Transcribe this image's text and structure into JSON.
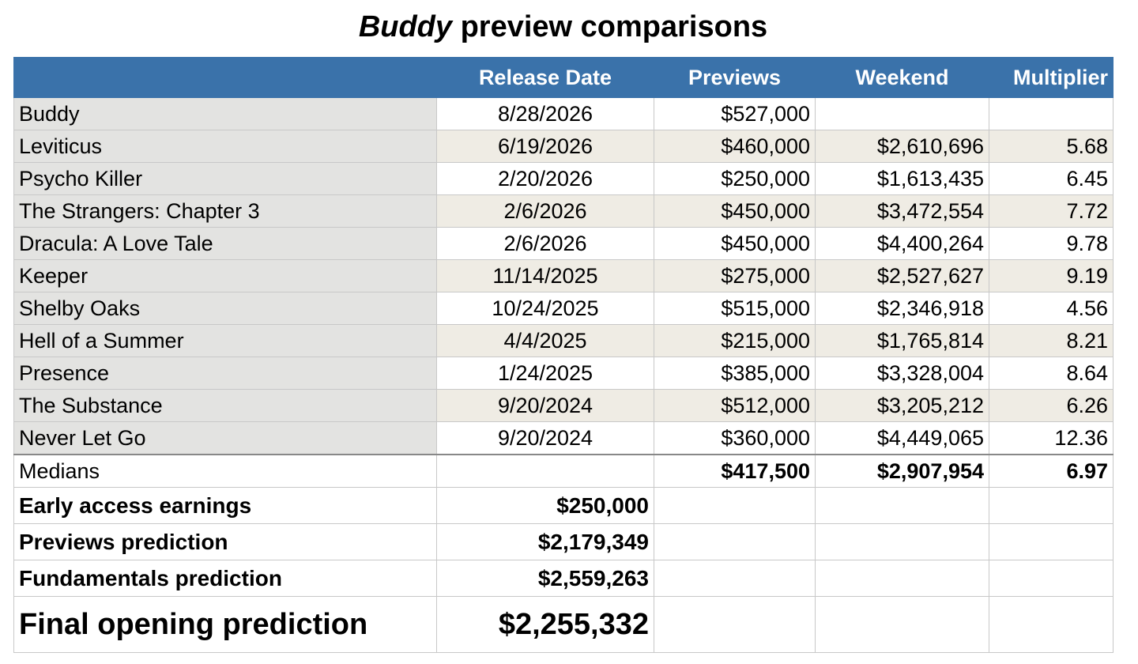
{
  "title": {
    "italic_part": "Buddy",
    "rest": " preview comparisons"
  },
  "header_color": "#3a72aa",
  "columns": [
    "",
    "Release Date",
    "Previews",
    "Weekend",
    "Multiplier"
  ],
  "films": [
    {
      "name": "Buddy",
      "release_date": "8/28/2026",
      "previews": "$527,000",
      "weekend": "",
      "multiplier": ""
    },
    {
      "name": "Leviticus",
      "release_date": "6/19/2026",
      "previews": "$460,000",
      "weekend": "$2,610,696",
      "multiplier": "5.68"
    },
    {
      "name": "Psycho Killer",
      "release_date": "2/20/2026",
      "previews": "$250,000",
      "weekend": "$1,613,435",
      "multiplier": "6.45"
    },
    {
      "name": "The Strangers: Chapter 3",
      "release_date": "2/6/2026",
      "previews": "$450,000",
      "weekend": "$3,472,554",
      "multiplier": "7.72"
    },
    {
      "name": "Dracula: A Love Tale",
      "release_date": "2/6/2026",
      "previews": "$450,000",
      "weekend": "$4,400,264",
      "multiplier": "9.78"
    },
    {
      "name": "Keeper",
      "release_date": "11/14/2025",
      "previews": "$275,000",
      "weekend": "$2,527,627",
      "multiplier": "9.19"
    },
    {
      "name": "Shelby Oaks",
      "release_date": "10/24/2025",
      "previews": "$515,000",
      "weekend": "$2,346,918",
      "multiplier": "4.56"
    },
    {
      "name": "Hell of a Summer",
      "release_date": "4/4/2025",
      "previews": "$215,000",
      "weekend": "$1,765,814",
      "multiplier": "8.21"
    },
    {
      "name": "Presence",
      "release_date": "1/24/2025",
      "previews": "$385,000",
      "weekend": "$3,328,004",
      "multiplier": "8.64"
    },
    {
      "name": "The Substance",
      "release_date": "9/20/2024",
      "previews": "$512,000",
      "weekend": "$3,205,212",
      "multiplier": "6.26"
    },
    {
      "name": "Never Let Go",
      "release_date": "9/20/2024",
      "previews": "$360,000",
      "weekend": "$4,449,065",
      "multiplier": "12.36"
    }
  ],
  "medians": {
    "label": "Medians",
    "previews": "$417,500",
    "weekend": "$2,907,954",
    "multiplier": "6.97"
  },
  "summary": [
    {
      "label": "Early access earnings",
      "value": "$250,000"
    },
    {
      "label": "Previews prediction",
      "value": "$2,179,349"
    },
    {
      "label": "Fundamentals prediction",
      "value": "$2,559,263"
    }
  ],
  "final": {
    "label": "Final opening prediction",
    "value": "$2,255,332"
  }
}
